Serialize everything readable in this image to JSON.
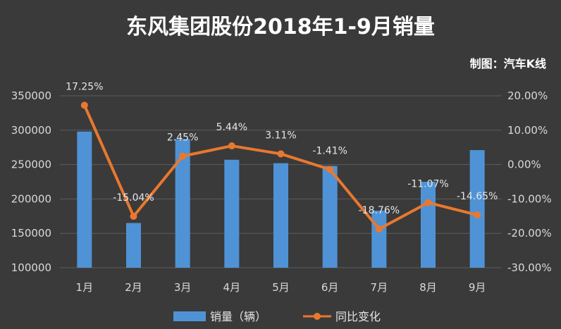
{
  "title": "东风集团股份2018年1-9月销量",
  "credit": "制图：汽车K线",
  "colors": {
    "background": "#3a3a3a",
    "bar": "#4f93d6",
    "line": "#e9782f",
    "grid": "#5c5c5c",
    "text": "#d9d9d9"
  },
  "chart_data": {
    "type": "bar+line",
    "categories": [
      "1月",
      "2月",
      "3月",
      "4月",
      "5月",
      "6月",
      "7月",
      "8月",
      "9月"
    ],
    "series": [
      {
        "name": "销量（辆）",
        "type": "bar",
        "axis": "left",
        "values": [
          298000,
          165000,
          287000,
          257000,
          252000,
          248000,
          183000,
          225000,
          271000
        ]
      },
      {
        "name": "同比变化",
        "type": "line",
        "axis": "right",
        "values": [
          17.25,
          -15.04,
          2.45,
          5.44,
          3.11,
          -1.41,
          -18.76,
          -11.07,
          -14.65
        ],
        "labels": [
          "17.25%",
          "-15.04%",
          "2.45%",
          "5.44%",
          "3.11%",
          "-1.41%",
          "-18.76%",
          "-11.07%",
          "-14.65%"
        ]
      }
    ],
    "y_left": {
      "min": 100000,
      "max": 350000,
      "step": 50000,
      "ticks": [
        "100000",
        "150000",
        "200000",
        "250000",
        "300000",
        "350000"
      ]
    },
    "y_right": {
      "min": -30,
      "max": 20,
      "step": 10,
      "ticks": [
        "-30.00%",
        "-20.00%",
        "-10.00%",
        "0.00%",
        "10.00%",
        "20.00%"
      ]
    },
    "grid": true,
    "legend_position": "bottom"
  }
}
